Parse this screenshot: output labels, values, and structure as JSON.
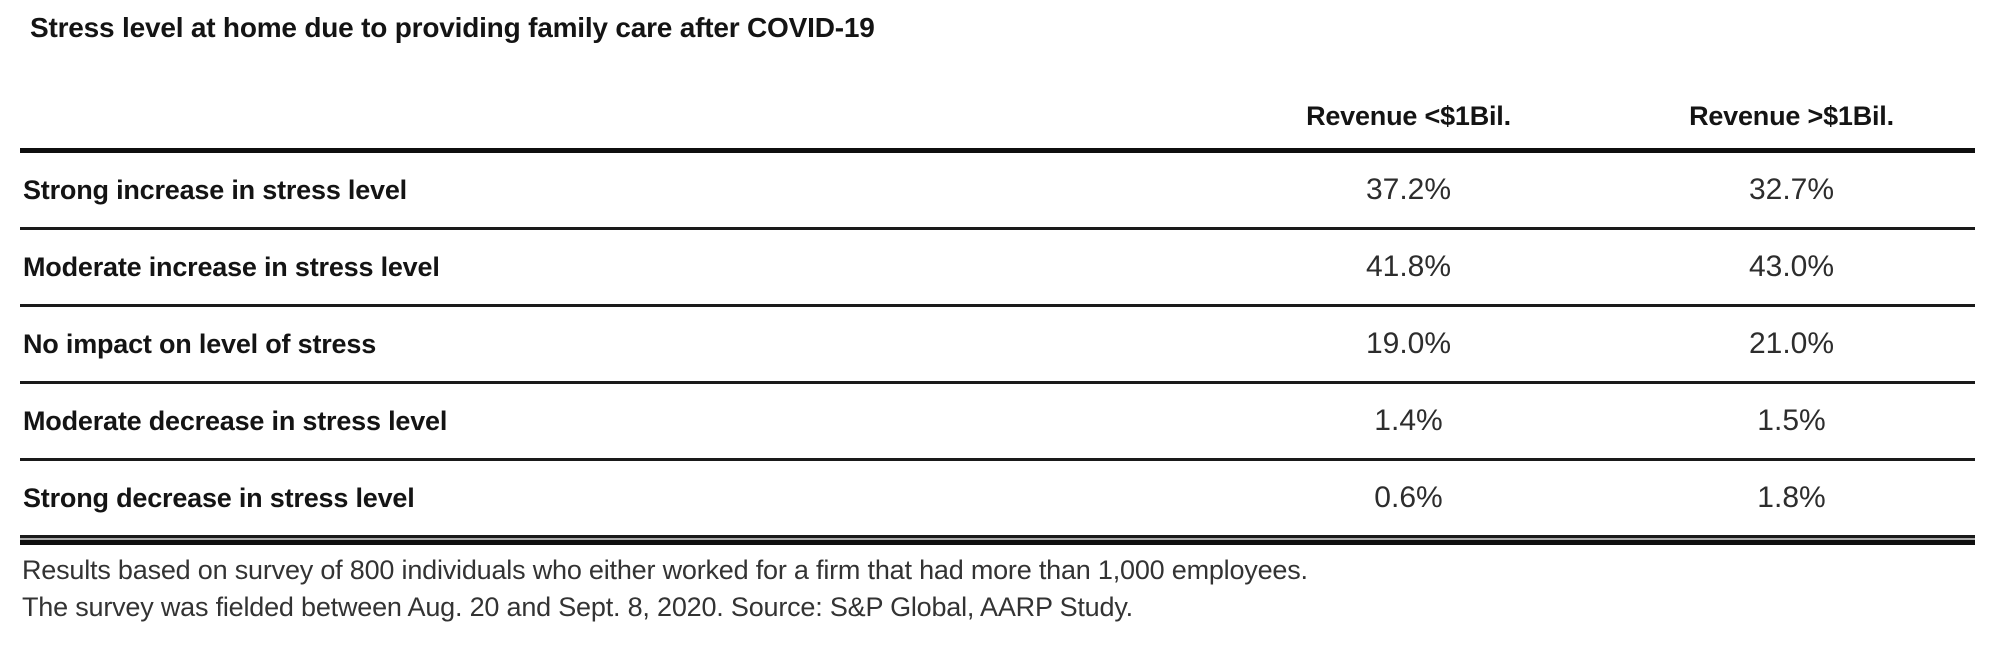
{
  "title": "Stress level at home due to providing family care after COVID-19",
  "table": {
    "columns": [
      "Revenue <$1Bil.",
      "Revenue >$1Bil."
    ],
    "rows": [
      {
        "label": "Strong increase in stress level",
        "values": [
          "37.2%",
          "32.7%"
        ]
      },
      {
        "label": "Moderate increase in stress level",
        "values": [
          "41.8%",
          "43.0%"
        ]
      },
      {
        "label": "No impact on level of stress",
        "values": [
          "19.0%",
          "21.0%"
        ]
      },
      {
        "label": "Moderate decrease in stress level",
        "values": [
          "1.4%",
          "1.5%"
        ]
      },
      {
        "label": "Strong decrease in stress level",
        "values": [
          "0.6%",
          "1.8%"
        ]
      }
    ]
  },
  "footnotes": {
    "line1": "Results based on survey of 800 individuals who either worked for a firm that had more than 1,000 employees.",
    "line2": "The survey was fielded between Aug. 20 and Sept. 8, 2020. Source: S&P Global, AARP Study."
  },
  "colors": {
    "text": "#141414",
    "value_text": "#2d2d2d",
    "footnote_text": "#333333",
    "rule": "#0f0f0f",
    "bottom_rule_grey": "#ababab",
    "background": "#ffffff"
  },
  "chart_data": {
    "type": "table",
    "title": "Stress level at home due to providing family care after COVID-19",
    "categories": [
      "Strong increase in stress level",
      "Moderate increase in stress level",
      "No impact on level of stress",
      "Moderate decrease in stress level",
      "Strong decrease in stress level"
    ],
    "series": [
      {
        "name": "Revenue <$1Bil.",
        "values": [
          37.2,
          41.8,
          19.0,
          1.4,
          0.6
        ]
      },
      {
        "name": "Revenue >$1Bil.",
        "values": [
          32.7,
          43.0,
          21.0,
          1.5,
          1.8
        ]
      }
    ],
    "unit": "%",
    "footnotes": [
      "Results based on survey of 800 individuals who either worked for a firm that had more than 1,000 employees.",
      "The survey was fielded between Aug. 20 and Sept. 8, 2020. Source: S&P Global, AARP Study."
    ]
  }
}
